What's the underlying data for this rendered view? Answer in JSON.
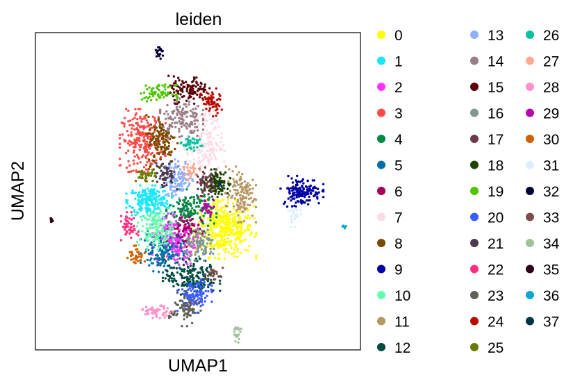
{
  "chart_data": {
    "type": "scatter",
    "title": "leiden",
    "xlabel": "UMAP1",
    "ylabel": "UMAP2",
    "xlim": [
      0,
      100
    ],
    "ylim": [
      0,
      100
    ],
    "grid": false,
    "ticks": false,
    "legend_position": "right",
    "legend_columns": 3,
    "categories": [
      "0",
      "1",
      "2",
      "3",
      "4",
      "5",
      "6",
      "7",
      "8",
      "9",
      "10",
      "11",
      "12",
      "13",
      "14",
      "15",
      "16",
      "17",
      "18",
      "19",
      "20",
      "21",
      "22",
      "23",
      "24",
      "25",
      "26",
      "27",
      "28",
      "29",
      "30",
      "31",
      "32",
      "33",
      "34",
      "35",
      "36",
      "37"
    ],
    "colors": [
      "#ffff00",
      "#1ce6ff",
      "#ff34ff",
      "#ff4a46",
      "#008941",
      "#006fa6",
      "#a30059",
      "#ffdbe5",
      "#7a4900",
      "#0000a6",
      "#63ffac",
      "#b79762",
      "#004d43",
      "#8fb0ff",
      "#997d87",
      "#5a0007",
      "#809693",
      "#6a3a4c",
      "#1b4400",
      "#4fc601",
      "#3b5dff",
      "#4a3b53",
      "#ff2f80",
      "#61615a",
      "#ba0900",
      "#6b7900",
      "#00c2a0",
      "#ffaa92",
      "#ff90c9",
      "#b903aa",
      "#d16100",
      "#ddefff",
      "#000035",
      "#7b4f4b",
      "#a1c299",
      "#300018",
      "#0aa6d8",
      "#013349"
    ],
    "clusters": [
      {
        "label": "0",
        "center": [
          58,
          38
        ],
        "spread": [
          4.5,
          4.2
        ],
        "n": 420
      },
      {
        "label": "1",
        "center": [
          35,
          47
        ],
        "spread": [
          3.2,
          2.2
        ],
        "n": 230
      },
      {
        "label": "2",
        "center": [
          43,
          35
        ],
        "spread": [
          3.2,
          4.2
        ],
        "n": 260
      },
      {
        "label": "3",
        "center": [
          33,
          66
        ],
        "spread": [
          3.2,
          4.5
        ],
        "n": 240
      },
      {
        "label": "4",
        "center": [
          48,
          44
        ],
        "spread": [
          3.5,
          3
        ],
        "n": 150
      },
      {
        "label": "5",
        "center": [
          39,
          31
        ],
        "spread": [
          3,
          3
        ],
        "n": 150
      },
      {
        "label": "6",
        "center": [
          46,
          38
        ],
        "spread": [
          2.5,
          2.5
        ],
        "n": 60
      },
      {
        "label": "7",
        "center": [
          52,
          65
        ],
        "spread": [
          2.8,
          5.5
        ],
        "n": 170
      },
      {
        "label": "8",
        "center": [
          39,
          66
        ],
        "spread": [
          2.2,
          3.8
        ],
        "n": 130
      },
      {
        "label": "9",
        "center": [
          82,
          50
        ],
        "spread": [
          3,
          2.2
        ],
        "n": 150
      },
      {
        "label": "10",
        "center": [
          37,
          38
        ],
        "spread": [
          2.6,
          3
        ],
        "n": 150
      },
      {
        "label": "11",
        "center": [
          63,
          49
        ],
        "spread": [
          2.2,
          4
        ],
        "n": 130
      },
      {
        "label": "12",
        "center": [
          48,
          23
        ],
        "spread": [
          4,
          2.6
        ],
        "n": 190
      },
      {
        "label": "13",
        "center": [
          44,
          54
        ],
        "spread": [
          2,
          2.8
        ],
        "n": 110
      },
      {
        "label": "14",
        "center": [
          45,
          73
        ],
        "spread": [
          3,
          3
        ],
        "n": 130
      },
      {
        "label": "15",
        "center": [
          47,
          82
        ],
        "spread": [
          3,
          2
        ],
        "n": 110
      },
      {
        "label": "16",
        "center": [
          51,
          33
        ],
        "spread": [
          2.5,
          2.2
        ],
        "n": 100
      },
      {
        "label": "17",
        "center": [
          53,
          52
        ],
        "spread": [
          2,
          2.5
        ],
        "n": 80
      },
      {
        "label": "18",
        "center": [
          56,
          53
        ],
        "spread": [
          1.8,
          1.8
        ],
        "n": 80
      },
      {
        "label": "19",
        "center": [
          38,
          81
        ],
        "spread": [
          2.5,
          1.2
        ],
        "n": 70
      },
      {
        "label": "20",
        "center": [
          49,
          17
        ],
        "spread": [
          2.4,
          2.4
        ],
        "n": 120
      },
      {
        "label": "21",
        "center": [
          40,
          55
        ],
        "spread": [
          1.6,
          2
        ],
        "n": 60
      },
      {
        "label": "22",
        "center": [
          29,
          39
        ],
        "spread": [
          1.2,
          2
        ],
        "n": 50
      },
      {
        "label": "23",
        "center": [
          46,
          13
        ],
        "spread": [
          2.2,
          2.5
        ],
        "n": 80
      },
      {
        "label": "24",
        "center": [
          54,
          78
        ],
        "spread": [
          1.5,
          2
        ],
        "n": 60
      },
      {
        "label": "25",
        "center": [
          34,
          55
        ],
        "spread": [
          1.6,
          1
        ],
        "n": 40
      },
      {
        "label": "26",
        "center": [
          48,
          65
        ],
        "spread": [
          1.5,
          1
        ],
        "n": 40
      },
      {
        "label": "27",
        "center": [
          48,
          56
        ],
        "spread": [
          1.2,
          1.2
        ],
        "n": 30
      },
      {
        "label": "28",
        "center": [
          37,
          12
        ],
        "spread": [
          2.5,
          0.9
        ],
        "n": 50
      },
      {
        "label": "29",
        "center": [
          53,
          45
        ],
        "spread": [
          1,
          1.2
        ],
        "n": 25
      },
      {
        "label": "30",
        "center": [
          31,
          30
        ],
        "spread": [
          1.2,
          1.5
        ],
        "n": 35
      },
      {
        "label": "31",
        "center": [
          80,
          42
        ],
        "spread": [
          1,
          1.5
        ],
        "n": 25
      },
      {
        "label": "32",
        "center": [
          38,
          94
        ],
        "spread": [
          0.8,
          1
        ],
        "n": 18
      },
      {
        "label": "33",
        "center": [
          55,
          24
        ],
        "spread": [
          1.5,
          1
        ],
        "n": 20
      },
      {
        "label": "34",
        "center": [
          62,
          5
        ],
        "spread": [
          0.6,
          1.2
        ],
        "n": 20
      },
      {
        "label": "35",
        "center": [
          5,
          41
        ],
        "spread": [
          0.3,
          0.4
        ],
        "n": 8
      },
      {
        "label": "36",
        "center": [
          95,
          39
        ],
        "spread": [
          0.3,
          0.3
        ],
        "n": 5
      },
      {
        "label": "37",
        "center": [
          57,
          52
        ],
        "spread": [
          0.4,
          0.4
        ],
        "n": 4
      }
    ]
  }
}
